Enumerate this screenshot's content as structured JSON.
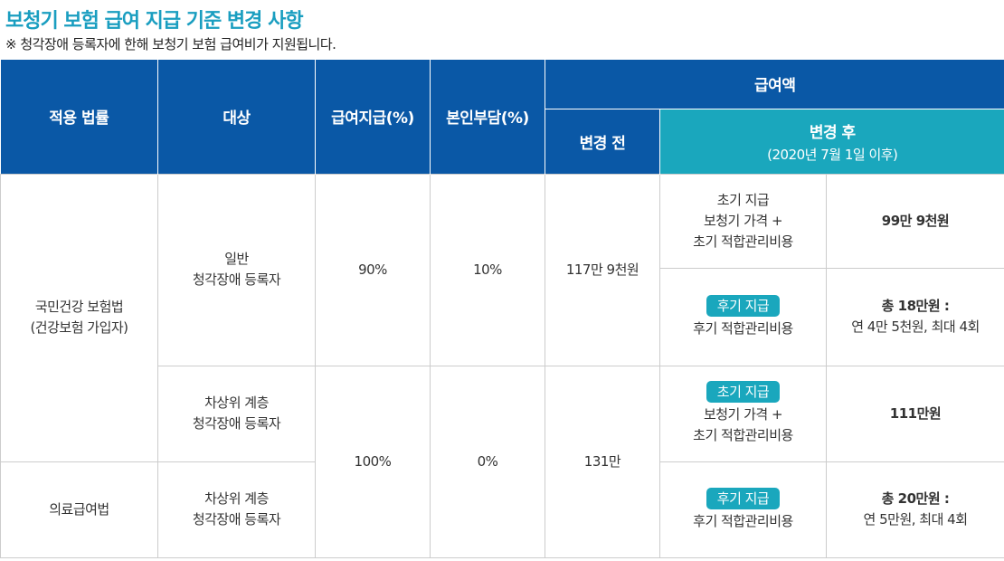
{
  "title": "보청기 보험 급여 지급 기준 변경 사항",
  "note": "※ 청각장애 등록자에 한해 보청기 보험 급여비가 지원됩니다.",
  "header": {
    "law": "적용 법률",
    "target": "대상",
    "payment_rate": "급여지급(%)",
    "copay": "본인부담(%)",
    "amount": "급여액",
    "before": "변경 전",
    "after": "변경 후",
    "after_sub": "(2020년 7월 1일 이후)"
  },
  "rows": {
    "law_nhi_1": "국민건강 보험법",
    "law_nhi_2": "(건강보험 가입자)",
    "law_medical": "의료급여법",
    "target_general_1": "일반",
    "target_general_2": "청각장애 등록자",
    "target_near_poor_1": "차상위 계층",
    "target_near_poor_2": "청각장애 등록자",
    "target_medical_1": "차상위 계층",
    "target_medical_2": "청각장애 등록자",
    "rate_general": "90%",
    "copay_general": "10%",
    "before_general": "117만 9천원",
    "rate_low": "100%",
    "copay_low": "0%",
    "before_low": "131만",
    "initial_badge": "초기 지급",
    "later_badge": "후기 지급",
    "r1_type_1": "초기 지급",
    "r1_type_2": "보청기 가격 +",
    "r1_type_3": "초기 적합관리비용",
    "r1_amount": "99만 9천원",
    "r2_type": "후기 적합관리비용",
    "r2_amount_1": "총 18만원 :",
    "r2_amount_2": "연 4만 5천원, 최대 4회",
    "r3_type_1": "보청기 가격 +",
    "r3_type_2": "초기 적합관리비용",
    "r3_amount": "111만원",
    "r4_type": "후기 적합관리비용",
    "r4_amount_1": "총 20만원 :",
    "r4_amount_2": "연 5만원, 최대 4회"
  }
}
